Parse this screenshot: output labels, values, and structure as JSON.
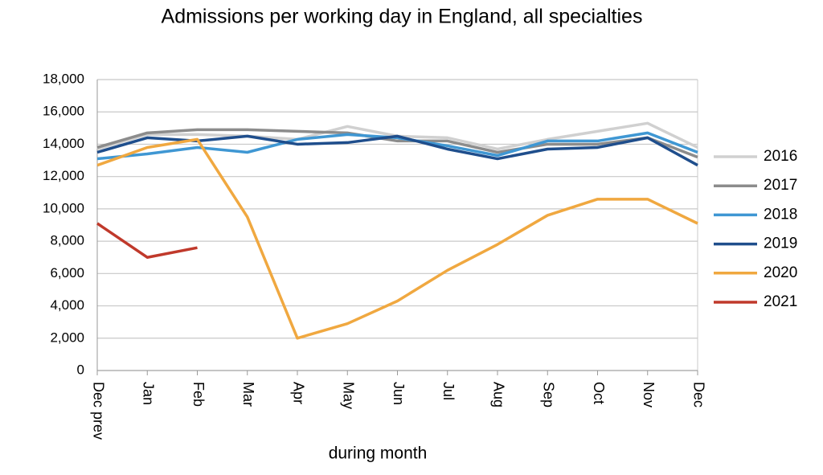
{
  "chart_data": {
    "type": "line",
    "title": "Admissions per working day in England, all specialties",
    "x_label": "during month",
    "categories": [
      "Dec prev",
      "Jan",
      "Feb",
      "Mar",
      "Apr",
      "May",
      "Jun",
      "Jul",
      "Aug",
      "Sep",
      "Oct",
      "Nov",
      "Dec"
    ],
    "series": [
      {
        "name": "2016",
        "color": "#d0d0d0",
        "values": [
          13700,
          14600,
          14600,
          14500,
          14300,
          15100,
          14500,
          14400,
          13700,
          14300,
          14800,
          15300,
          13800
        ]
      },
      {
        "name": "2017",
        "color": "#8c8c8c",
        "values": [
          13800,
          14700,
          14900,
          14900,
          14800,
          14700,
          14200,
          14200,
          13500,
          14000,
          14000,
          14400,
          13200
        ]
      },
      {
        "name": "2018",
        "color": "#3f97d3",
        "values": [
          13100,
          13400,
          13800,
          13500,
          14300,
          14600,
          14400,
          13900,
          13300,
          14200,
          14200,
          14700,
          13500
        ]
      },
      {
        "name": "2019",
        "color": "#1f4e8c",
        "values": [
          13500,
          14400,
          14200,
          14500,
          14000,
          14100,
          14500,
          13700,
          13100,
          13700,
          13800,
          14400,
          12700
        ]
      },
      {
        "name": "2020",
        "color": "#f0a840",
        "values": [
          12700,
          13800,
          14300,
          9500,
          2000,
          2900,
          4300,
          6200,
          7800,
          9600,
          10600,
          10600,
          9100
        ]
      },
      {
        "name": "2021",
        "color": "#c0392b",
        "values": [
          9100,
          7000,
          7600,
          null,
          null,
          null,
          null,
          null,
          null,
          null,
          null,
          null,
          null
        ]
      }
    ],
    "ylim": [
      0,
      18000
    ],
    "yticks": [
      0,
      {
        "value": 2000,
        "label": "2,000"
      },
      {
        "value": 4000,
        "label": "4,000"
      },
      {
        "value": 6000,
        "label": "6,000"
      },
      {
        "value": 8000,
        "label": "8,000"
      },
      {
        "value": 10000,
        "label": "10,000"
      },
      {
        "value": 12000,
        "label": "12,000"
      },
      {
        "value": 14000,
        "label": "14,000"
      },
      {
        "value": 16000,
        "label": "16,000"
      },
      {
        "value": 18000,
        "label": "18,000"
      }
    ],
    "grid": true,
    "legend": "right"
  }
}
